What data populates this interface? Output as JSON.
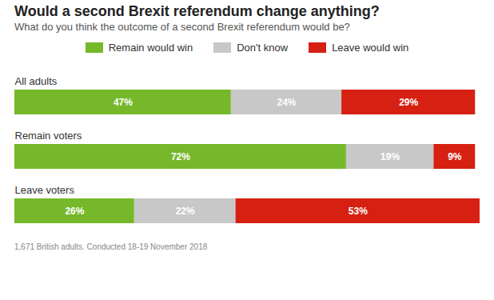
{
  "chart_data": {
    "type": "bar",
    "orientation": "horizontal",
    "stacked": true,
    "data_labels": true,
    "tick_labels": false,
    "title": "Would a second Brexit referendum change anything?",
    "subtitle": "What do you think the outcome of a second Brexit referendum would be?",
    "note": "1,671 British adults. Conducted 18-19 November 2018",
    "legend": "top",
    "categories": [
      "All adults",
      "Remain voters",
      "Leave voters"
    ],
    "xlim": [
      0,
      101
    ],
    "series": [
      {
        "name": "Remain would win",
        "color": "#76b82a",
        "values": [
          47,
          72,
          26
        ],
        "value_labels": [
          "47%",
          "72%",
          "26%"
        ]
      },
      {
        "name": "Don't know",
        "color": "#c8c8c8",
        "values": [
          24,
          19,
          22
        ],
        "value_labels": [
          "24%",
          "19%",
          "22%"
        ]
      },
      {
        "name": "Leave would win",
        "color": "#d62012",
        "values": [
          29,
          9,
          53
        ],
        "value_labels": [
          "29%",
          "9%",
          "53%"
        ]
      }
    ]
  }
}
